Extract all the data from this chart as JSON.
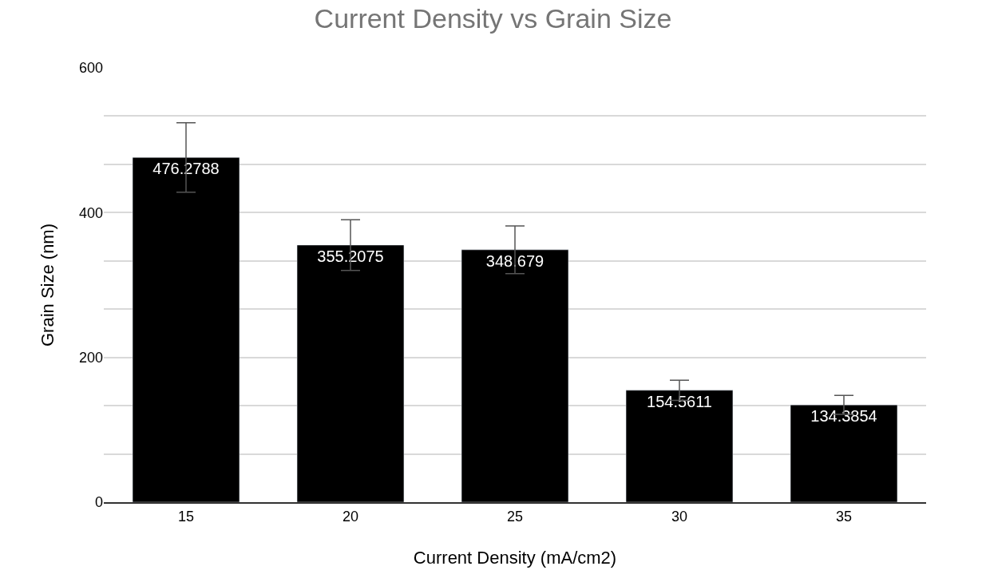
{
  "chart_data": {
    "type": "bar",
    "title": "Current Density vs Grain Size",
    "xlabel": "Current Density (mA/cm2)",
    "ylabel": "Grain Size (nm)",
    "categories": [
      "15",
      "20",
      "25",
      "30",
      "35"
    ],
    "values": [
      476.2788,
      355.2075,
      348.679,
      154.5611,
      134.3854
    ],
    "errors": [
      48,
      35,
      33,
      14,
      13
    ],
    "color": "#000000",
    "data_labels": true,
    "ylim": [
      0,
      600
    ],
    "yticks": [
      0,
      {
        "value": 66.67,
        "label": null
      },
      {
        "value": 133.33,
        "label": null
      },
      200,
      {
        "value": 266.67,
        "label": null
      },
      {
        "value": 333.33,
        "label": null
      },
      400,
      {
        "value": 466.67,
        "label": null
      },
      {
        "value": 533.33,
        "label": null
      },
      600
    ],
    "grid": "y"
  }
}
